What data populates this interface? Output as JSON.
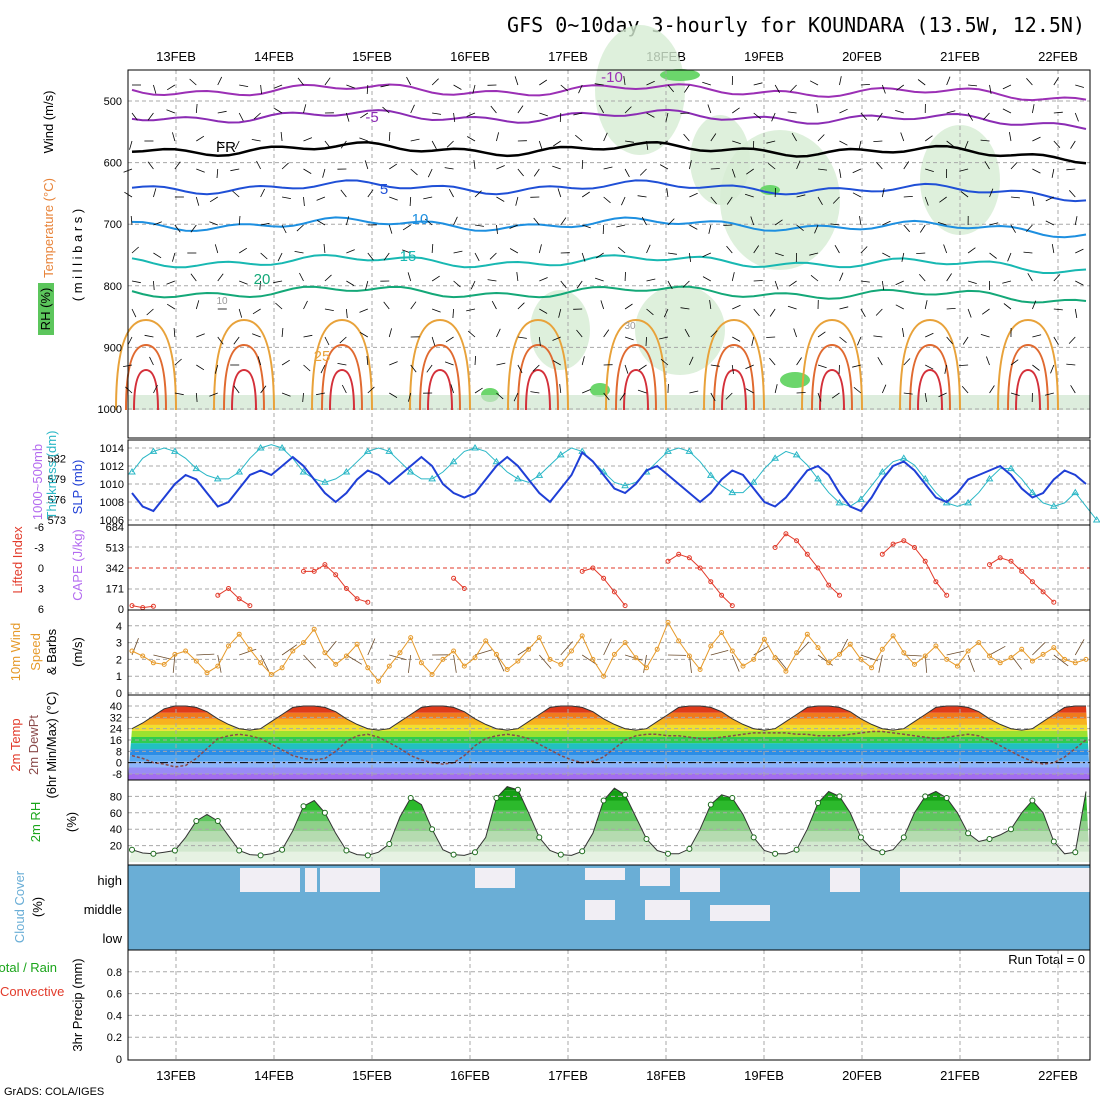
{
  "title": "GFS 0~10day 3-hourly for KOUNDARA (13.5W, 12.5N)",
  "footer": "GrADS: COLA/IGES",
  "run_total_text": "Run Total = 0",
  "colors": {
    "slp": "#1f3fd6",
    "thickness": "#2ab7c6",
    "lifted_index": "#e23a2a",
    "cape": "#b46cf0",
    "wind10": "#e69a2a",
    "dewpt": "#8a4a4a",
    "rh2m": "#1aa51a",
    "cloud": "#6aaed6"
  },
  "chart_data": {
    "type": "line",
    "x_dates": [
      "13FEB",
      "14FEB",
      "15FEB",
      "16FEB",
      "17FEB",
      "18FEB",
      "19FEB",
      "20FEB",
      "21FEB",
      "22FEB"
    ],
    "panels": {
      "upper_air": {
        "ylabel": "( m i l l i b a r s )",
        "legend": [
          "Wind (m/s)",
          "Temperature (°C)",
          "RH (%)"
        ],
        "ylim": [
          1000,
          450
        ],
        "yticks": [
          500,
          600,
          700,
          800,
          900,
          1000
        ],
        "isotherm_labels": [
          "-10",
          "-5",
          "FR",
          "5",
          "10",
          "15",
          "20",
          "25",
          "10",
          "30"
        ],
        "isotherms": [
          {
            "label": "-10",
            "level": 482
          },
          {
            "label": "-5",
            "level": 525
          },
          {
            "label": "FR",
            "level": 578
          },
          {
            "label": "5",
            "level": 640
          },
          {
            "label": "10",
            "level": 700
          },
          {
            "label": "15",
            "level": 760
          },
          {
            "label": "20",
            "level": 810
          }
        ]
      },
      "slp_thickness": {
        "labels": [
          "1000~500mb",
          "Thickness (dm)",
          "SLP (mb)"
        ],
        "slp_ylim": [
          1006,
          1014
        ],
        "slp_yticks": [
          1006,
          1008,
          1010,
          1012,
          1014
        ],
        "thk_ylim": [
          573,
          584
        ],
        "thk_yticks": [
          573,
          576,
          579,
          582
        ],
        "slp": [
          1009,
          1007.5,
          1007,
          1008.5,
          1010,
          1011,
          1010.5,
          1009,
          1007.5,
          1008,
          1009.5,
          1011,
          1011.5,
          1011,
          1012,
          1013,
          1012,
          1010.5,
          1009,
          1008,
          1009,
          1010.5,
          1011.5,
          1011,
          1010,
          1011,
          1012,
          1013,
          1012,
          1010,
          1009,
          1008.5,
          1009,
          1010.5,
          1012,
          1013,
          1012,
          1010.5,
          1009,
          1008,
          1009.5,
          1011,
          1013.5,
          1012.5,
          1011,
          1009.5,
          1009,
          1010,
          1011.5,
          1012,
          1011,
          1010,
          1009,
          1008,
          1009,
          1010.5,
          1011.5,
          1011,
          1009.5,
          1008,
          1007.5,
          1008.5,
          1010,
          1011.5,
          1012,
          1011,
          1009,
          1007.5,
          1007,
          1008.5,
          1010.5,
          1012,
          1012.5,
          1011.5,
          1010,
          1008.5,
          1008,
          1009,
          1010.5,
          1011,
          1011.5,
          1012,
          1011,
          1009.5,
          1008.5,
          1009,
          1010.5,
          1011.5,
          1011,
          1010
        ],
        "thickness": [
          580,
          582,
          583,
          583.5,
          583,
          582,
          580.5,
          579.5,
          579,
          579,
          580,
          582,
          583.5,
          584,
          583.5,
          582,
          580,
          579,
          578.5,
          579,
          580,
          581.5,
          583,
          583.5,
          583,
          581.5,
          580,
          579,
          579,
          580,
          581.5,
          583,
          583.5,
          583,
          581.5,
          580,
          579,
          578.5,
          579.5,
          581,
          582.5,
          583.5,
          583,
          581.5,
          580,
          578.5,
          578,
          578.5,
          580,
          581.5,
          583,
          583.5,
          583,
          581.5,
          579.5,
          578,
          577,
          577,
          578.5,
          580.5,
          582,
          583,
          582.5,
          581,
          579,
          577,
          575.5,
          575,
          576,
          578,
          580,
          581.5,
          582,
          581,
          579,
          577,
          575.5,
          575,
          575.5,
          577,
          579,
          580.5,
          580.5,
          579,
          577,
          575.5,
          575,
          575.5,
          577,
          575,
          573
        ]
      },
      "li_cape": {
        "labels": [
          "Lifted Index",
          "CAPE (J/kg)"
        ],
        "li_yticks": [
          -6,
          -3,
          0,
          3,
          6
        ],
        "cape_yticks": [
          0,
          171,
          342,
          513,
          684
        ],
        "cape": [
          0,
          0,
          0,
          0,
          0,
          0,
          0,
          0,
          0,
          0,
          0,
          0,
          0,
          0,
          0,
          0,
          0,
          0,
          0,
          0,
          0,
          0,
          0,
          0,
          0,
          0,
          0,
          0,
          0,
          0,
          0,
          0,
          0,
          0,
          0,
          0,
          0,
          0,
          0,
          0,
          0,
          0,
          0,
          0,
          0,
          0,
          0,
          0,
          0,
          0,
          0,
          0,
          0,
          0,
          0,
          0,
          0,
          0,
          0,
          0,
          0,
          0,
          0,
          0,
          0,
          0,
          0,
          0,
          0,
          0,
          0,
          0,
          0,
          0,
          0,
          0,
          0,
          0,
          0,
          0,
          0,
          0,
          0,
          0,
          0,
          0,
          0,
          0,
          0,
          0
        ],
        "lifted_index": [
          5.5,
          5.8,
          5.6,
          6,
          6,
          6,
          6,
          6,
          4,
          3,
          4.5,
          5.5,
          6,
          6,
          6,
          6,
          0.5,
          0.5,
          -0.5,
          1,
          3,
          4.5,
          5,
          6,
          6,
          6,
          6,
          6,
          6,
          6,
          1.5,
          3,
          6,
          6,
          6,
          6,
          6,
          6,
          6,
          6,
          6,
          6,
          0.5,
          0,
          1.5,
          3.5,
          5.5,
          6,
          6,
          6,
          -1,
          -2,
          -1.5,
          0,
          2,
          4,
          5.5,
          6,
          6,
          6,
          -3,
          -5,
          -4,
          -2,
          0,
          2.5,
          4,
          6,
          6,
          6,
          -2,
          -3.5,
          -4,
          -3,
          -1,
          2,
          4,
          6,
          6,
          6,
          -0.5,
          -1.5,
          -1,
          0.5,
          2,
          3.5,
          5,
          6,
          6,
          6
        ]
      },
      "wind10": {
        "labels": [
          "10m Wind",
          "Speed",
          "& Barbs",
          "(m/s)"
        ],
        "yticks": [
          0,
          1,
          2,
          3,
          4
        ],
        "ylim": [
          0,
          5
        ],
        "speed": [
          2.5,
          2.2,
          1.8,
          1.7,
          2.3,
          2.5,
          1.9,
          1.2,
          1.6,
          2.8,
          3.5,
          2.6,
          1.8,
          1.1,
          1.5,
          2.5,
          3.0,
          3.8,
          2.4,
          1.7,
          2.2,
          2.9,
          1.5,
          0.7,
          1.6,
          2.4,
          3.3,
          1.8,
          1.1,
          2.0,
          2.5,
          1.6,
          2.1,
          3.1,
          2.3,
          1.4,
          1.9,
          2.6,
          3.3,
          2.0,
          1.7,
          2.5,
          3.4,
          2.0,
          1.0,
          2.3,
          3.0,
          2.1,
          1.5,
          2.6,
          4.2,
          3.1,
          2.2,
          1.4,
          2.8,
          3.6,
          2.5,
          1.6,
          2.0,
          3.2,
          2.1,
          1.3,
          2.4,
          3.5,
          2.7,
          1.8,
          2.3,
          2.9,
          2.0,
          1.5,
          2.6,
          3.4,
          2.4,
          1.7,
          2.2,
          2.8,
          2.0,
          1.6,
          2.5,
          3.0,
          2.2,
          1.8,
          2.1,
          2.6,
          1.9,
          2.3,
          2.7,
          2.0,
          1.8,
          2.0
        ]
      },
      "temp2m": {
        "labels": [
          "2m Temp",
          "2m DewPt",
          "(6hr Min/Max) (°C)"
        ],
        "yticks": [
          -8,
          0,
          8,
          16,
          24,
          32,
          40
        ],
        "ylim": [
          -10,
          42
        ],
        "temp": [
          24,
          28,
          33,
          38,
          40,
          40,
          39,
          36,
          31,
          27,
          24,
          23,
          24,
          29,
          34,
          39,
          40,
          40,
          39,
          36,
          31,
          27,
          24,
          23,
          24,
          29,
          34,
          39,
          40,
          40,
          39,
          36,
          31,
          27,
          24,
          23,
          24,
          29,
          34,
          39,
          40,
          40,
          39,
          36,
          31,
          27,
          24,
          23,
          24,
          29,
          34,
          39,
          40,
          40,
          39,
          36,
          31,
          27,
          24,
          23,
          24,
          29,
          34,
          39,
          40,
          40,
          39,
          36,
          31,
          27,
          24,
          23,
          24,
          29,
          34,
          39,
          40,
          40,
          39,
          36,
          31,
          27,
          24,
          23,
          24,
          29,
          34,
          39,
          40,
          40
        ],
        "dewpt": [
          5,
          3,
          0,
          -1,
          -3,
          -2,
          3,
          10,
          17,
          19,
          20,
          19,
          17,
          13,
          9,
          5,
          3,
          2,
          3,
          8,
          15,
          19,
          20,
          18,
          14,
          10,
          5,
          2,
          0,
          -1,
          0,
          5,
          12,
          17,
          19,
          20,
          19,
          17,
          13,
          9,
          5,
          2,
          0,
          1,
          4,
          10,
          16,
          19,
          20,
          20,
          19,
          19,
          18,
          17,
          17,
          18,
          19,
          20,
          21,
          21,
          21,
          21,
          20,
          20,
          19,
          19,
          19,
          20,
          21,
          22,
          22,
          21,
          20,
          19,
          18,
          17,
          18,
          19,
          20,
          19,
          16,
          12,
          8,
          4,
          1,
          -1,
          0,
          4,
          10,
          16
        ]
      },
      "rh2m": {
        "labels": [
          "2m RH",
          "(%)"
        ],
        "yticks": [
          20,
          40,
          60,
          80
        ],
        "ylim": [
          0,
          100
        ],
        "rh": [
          15,
          11,
          10,
          12,
          14,
          30,
          50,
          58,
          50,
          32,
          14,
          9,
          8,
          10,
          15,
          38,
          68,
          75,
          60,
          35,
          14,
          9,
          8,
          12,
          22,
          55,
          78,
          70,
          40,
          15,
          9,
          8,
          12,
          30,
          78,
          92,
          88,
          60,
          30,
          14,
          9,
          8,
          13,
          35,
          75,
          90,
          82,
          55,
          28,
          14,
          10,
          10,
          16,
          40,
          70,
          82,
          78,
          58,
          30,
          14,
          10,
          10,
          15,
          40,
          72,
          86,
          80,
          60,
          30,
          16,
          12,
          15,
          30,
          60,
          80,
          86,
          78,
          60,
          35,
          25,
          28,
          33,
          40,
          60,
          75,
          60,
          25,
          10,
          12,
          86
        ]
      },
      "cloud_cover": {
        "labels": [
          "Cloud Cover",
          "(%)"
        ],
        "levels": [
          "high",
          "middle",
          "low"
        ]
      },
      "precip3h": {
        "labels": [
          "Total / Rain",
          "Convective",
          "3hr Precip (mm)"
        ],
        "yticks": [
          0,
          0.2,
          0.4,
          0.6,
          0.8
        ],
        "ylim": [
          0,
          1
        ],
        "values": [
          0
        ]
      }
    }
  }
}
